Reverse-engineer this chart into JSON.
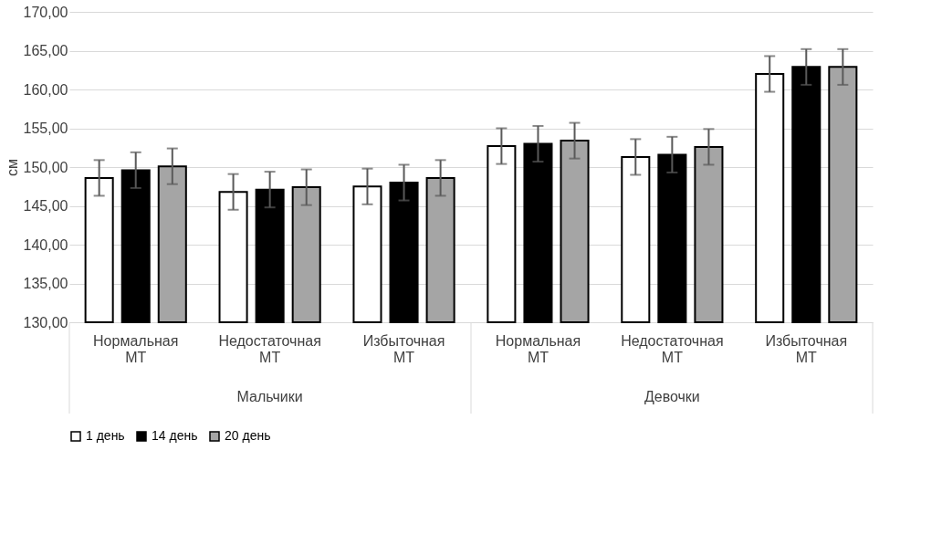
{
  "chart_data": {
    "type": "bar",
    "ylabel": "см",
    "categories": [
      "Нормальная МТ",
      "Недостаточная МТ",
      "Избыточная МТ",
      "Нормальная МТ",
      "Недостаточная МТ",
      "Избыточная МТ"
    ],
    "series": [
      {
        "name": "1 день",
        "color": "#ffffff",
        "values": [
          148.6,
          146.8,
          147.5,
          152.7,
          151.3,
          162.0
        ],
        "errors": [
          2.3,
          2.3,
          2.3,
          2.3,
          2.3,
          2.3
        ]
      },
      {
        "name": "14 день",
        "color": "#000000",
        "values": [
          149.6,
          147.1,
          148.0,
          153.0,
          151.6,
          162.9
        ],
        "errors": [
          2.3,
          2.3,
          2.3,
          2.3,
          2.3,
          2.3
        ]
      },
      {
        "name": "20 день",
        "color": "#a5a5a5",
        "values": [
          150.1,
          147.4,
          148.6,
          153.4,
          152.6,
          162.9
        ],
        "errors": [
          2.3,
          2.3,
          2.3,
          2.3,
          2.3,
          2.3
        ]
      }
    ],
    "annotations": [
      "Мальчики",
      "Девочки"
    ],
    "ylim": [
      130,
      170
    ],
    "yticks": [
      {
        "value": 130,
        "label": "130,00"
      },
      {
        "value": 135,
        "label": "135,00"
      },
      {
        "value": 140,
        "label": "140,00"
      },
      {
        "value": 145,
        "label": "145,00"
      },
      {
        "value": 150,
        "label": "150,00"
      },
      {
        "value": 155,
        "label": "155,00"
      },
      {
        "value": 160,
        "label": "160,00"
      },
      {
        "value": 165,
        "label": "165,00"
      },
      {
        "value": 170,
        "label": "170,00"
      }
    ],
    "grid": "y",
    "legend": "bottom"
  }
}
